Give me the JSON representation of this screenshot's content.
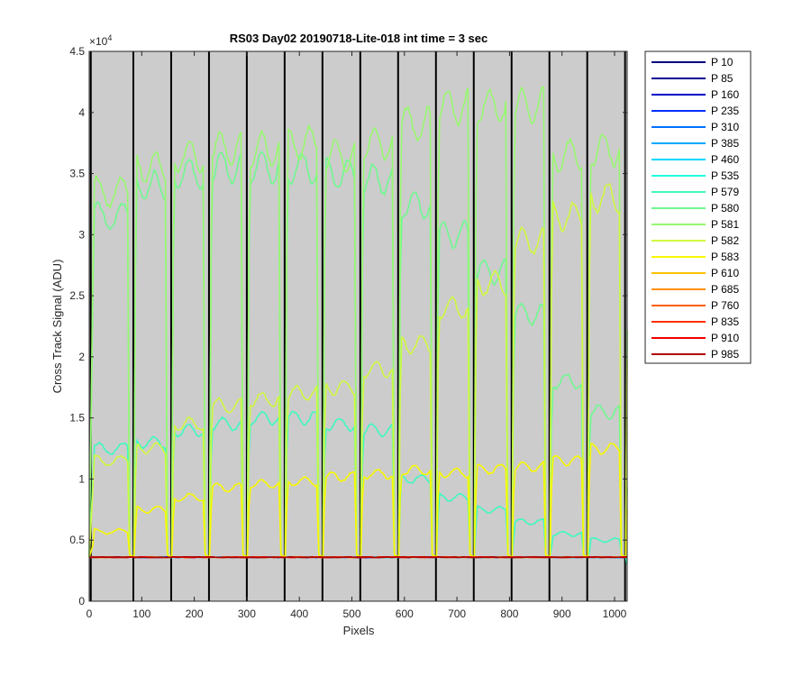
{
  "chart_data": {
    "type": "line",
    "title": "RS03 Day02 20190718-Lite-018 int time = 3 sec",
    "xlabel": "Pixels",
    "ylabel": "Cross Track Signal (ADU)",
    "y_exponent_label": "×10",
    "y_exponent_power": "4",
    "xlim": [
      0,
      1024
    ],
    "ylim": [
      0,
      45000
    ],
    "x_ticks": [
      0,
      100,
      200,
      300,
      400,
      500,
      600,
      700,
      800,
      900,
      1000
    ],
    "y_ticks": [
      0,
      5000,
      10000,
      15000,
      20000,
      25000,
      30000,
      35000,
      40000,
      45000
    ],
    "y_tick_labels": [
      "0",
      "0.5",
      "1",
      "1.5",
      "2",
      "2.5",
      "3",
      "3.5",
      "4",
      "4.5"
    ],
    "x_tick_labels": [
      "0",
      "100",
      "200",
      "300",
      "400",
      "500",
      "600",
      "700",
      "800",
      "900",
      "1000"
    ],
    "background_color": "#cccccc",
    "grid": false,
    "legend_position": "outside-right",
    "window_boundaries": [
      3,
      84,
      156,
      228,
      300,
      372,
      444,
      516,
      588,
      660,
      732,
      804,
      876,
      948,
      1020
    ],
    "baseline": 3600,
    "series": [
      {
        "name": "P 10",
        "color": "#000080",
        "levels": [
          3600,
          3600,
          3600,
          3600,
          3600,
          3600,
          3600,
          3600,
          3600,
          3600,
          3600,
          3600,
          3600,
          3600
        ]
      },
      {
        "name": "P 85",
        "color": "#00008f",
        "levels": [
          3600,
          3600,
          3600,
          3600,
          3600,
          3600,
          3600,
          3600,
          3600,
          3600,
          3600,
          3600,
          3600,
          3600
        ]
      },
      {
        "name": "P 160",
        "color": "#0000c8",
        "levels": [
          3600,
          3600,
          3600,
          3600,
          3600,
          3600,
          3600,
          3600,
          3600,
          3600,
          3600,
          3600,
          3600,
          3600
        ]
      },
      {
        "name": "P 235",
        "color": "#0030ff",
        "levels": [
          3600,
          3600,
          3600,
          3600,
          3600,
          3600,
          3600,
          3600,
          3600,
          3600,
          3600,
          3600,
          3600,
          3600
        ]
      },
      {
        "name": "P 310",
        "color": "#0070ff",
        "levels": [
          3600,
          3600,
          3600,
          3600,
          3600,
          3600,
          3600,
          3600,
          3600,
          3600,
          3600,
          3600,
          3600,
          3600
        ]
      },
      {
        "name": "P 385",
        "color": "#00a8ff",
        "levels": [
          3600,
          3600,
          3600,
          3600,
          3600,
          3600,
          3600,
          3600,
          3600,
          3600,
          3600,
          3600,
          3600,
          3600
        ]
      },
      {
        "name": "P 460",
        "color": "#00d8ff",
        "levels": [
          3600,
          3600,
          3600,
          3600,
          3600,
          3600,
          3600,
          3600,
          3600,
          3600,
          3600,
          3600,
          3600,
          3600
        ]
      },
      {
        "name": "P 535",
        "color": "#20ffe0",
        "levels": [
          3600,
          3600,
          3600,
          3600,
          3600,
          3600,
          3600,
          3600,
          3600,
          3600,
          3600,
          3600,
          3600,
          3600
        ]
      },
      {
        "name": "P 579",
        "color": "#40f8c0",
        "levels": [
          12500,
          13000,
          14000,
          14500,
          15000,
          15000,
          14500,
          14000,
          10000,
          8500,
          7500,
          6500,
          5500,
          5000
        ]
      },
      {
        "name": "P 580",
        "color": "#70f890",
        "levels": [
          31500,
          34000,
          35000,
          35500,
          35500,
          35500,
          35000,
          34500,
          32500,
          30000,
          27000,
          23500,
          18000,
          15500
        ]
      },
      {
        "name": "P 581",
        "color": "#98f870",
        "levels": [
          33500,
          35500,
          36500,
          37000,
          37000,
          37500,
          36500,
          37500,
          39000,
          40500,
          40500,
          40500,
          36500,
          37000
        ]
      },
      {
        "name": "P 582",
        "color": "#d0f840",
        "levels": [
          11500,
          12500,
          14500,
          16000,
          16500,
          17000,
          17500,
          19000,
          21000,
          24000,
          26000,
          29500,
          31500,
          33000
        ]
      },
      {
        "name": "P 583",
        "color": "#f8f800",
        "levels": [
          5700,
          7500,
          8500,
          9300,
          9600,
          9800,
          10200,
          10400,
          10700,
          10500,
          10800,
          11000,
          11500,
          12500
        ]
      },
      {
        "name": "P 610",
        "color": "#ffc000",
        "levels": [
          3600,
          3600,
          3600,
          3600,
          3600,
          3600,
          3600,
          3600,
          3600,
          3600,
          3600,
          3600,
          3600,
          3600
        ]
      },
      {
        "name": "P 685",
        "color": "#ff9000",
        "levels": [
          3600,
          3600,
          3600,
          3600,
          3600,
          3600,
          3600,
          3600,
          3600,
          3600,
          3600,
          3600,
          3600,
          3600
        ]
      },
      {
        "name": "P 760",
        "color": "#ff6000",
        "levels": [
          3600,
          3600,
          3600,
          3600,
          3600,
          3600,
          3600,
          3600,
          3600,
          3600,
          3600,
          3600,
          3600,
          3600
        ]
      },
      {
        "name": "P 835",
        "color": "#ff3000",
        "levels": [
          3600,
          3600,
          3600,
          3600,
          3600,
          3600,
          3600,
          3600,
          3600,
          3600,
          3600,
          3600,
          3600,
          3600
        ]
      },
      {
        "name": "P 910",
        "color": "#ee0000",
        "levels": [
          3600,
          3600,
          3600,
          3600,
          3600,
          3600,
          3600,
          3600,
          3600,
          3600,
          3600,
          3600,
          3600,
          3600
        ]
      },
      {
        "name": "P 985",
        "color": "#b00000",
        "levels": [
          3600,
          3600,
          3600,
          3600,
          3600,
          3600,
          3600,
          3600,
          3600,
          3600,
          3600,
          3600,
          3600,
          3600
        ]
      }
    ]
  }
}
